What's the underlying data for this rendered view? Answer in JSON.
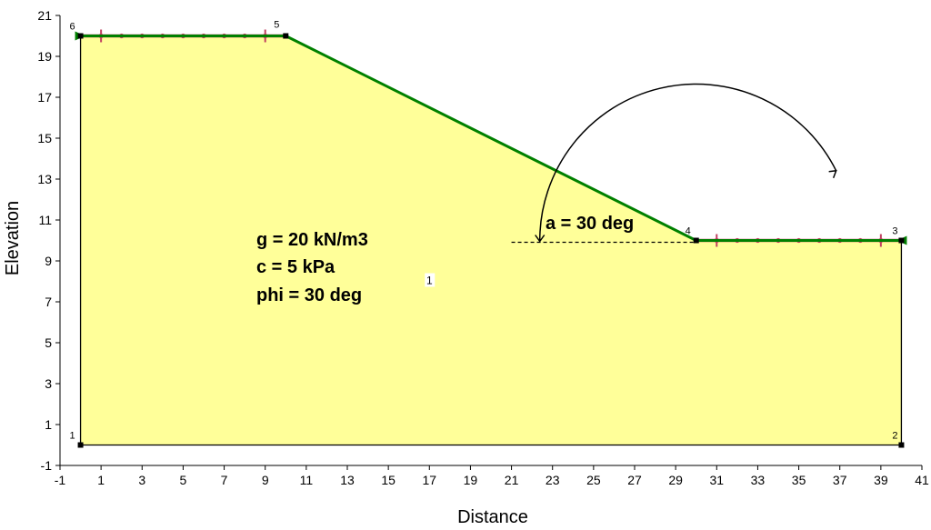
{
  "chart_data": {
    "type": "slope-stability-geometry",
    "xlabel": "Distance",
    "ylabel": "Elevation",
    "xlim": [
      -1,
      41
    ],
    "ylim": [
      -1,
      21
    ],
    "x_ticks": [
      -1,
      1,
      3,
      5,
      7,
      9,
      11,
      13,
      15,
      17,
      19,
      21,
      23,
      25,
      27,
      29,
      31,
      33,
      35,
      37,
      39,
      41
    ],
    "y_ticks": [
      -1,
      1,
      3,
      5,
      7,
      9,
      11,
      13,
      15,
      17,
      19,
      21
    ],
    "points": [
      {
        "id": "1",
        "x": 0,
        "y": 0
      },
      {
        "id": "2",
        "x": 40,
        "y": 0
      },
      {
        "id": "3",
        "x": 40,
        "y": 10
      },
      {
        "id": "4",
        "x": 30,
        "y": 10
      },
      {
        "id": "5",
        "x": 10,
        "y": 20
      },
      {
        "id": "6",
        "x": 0,
        "y": 20
      }
    ],
    "region": {
      "label": "1",
      "label_x": 17,
      "label_y": 8,
      "fill": "#ffff99",
      "outline": "#000000"
    },
    "ground_surface": {
      "points": [
        "6",
        "5",
        "4",
        "3"
      ],
      "color": "#008000"
    },
    "slip_limits": [
      {
        "from_x": 0,
        "to_x": 10,
        "y": 20,
        "color": "#c04060"
      },
      {
        "from_x": 30,
        "to_x": 40,
        "y": 10,
        "color": "#c04060"
      }
    ],
    "annotations": {
      "angle_label": "a = 30 deg",
      "properties": [
        "g = 20 kN/m3",
        "c = 5 kPa",
        "phi = 30 deg"
      ]
    }
  }
}
